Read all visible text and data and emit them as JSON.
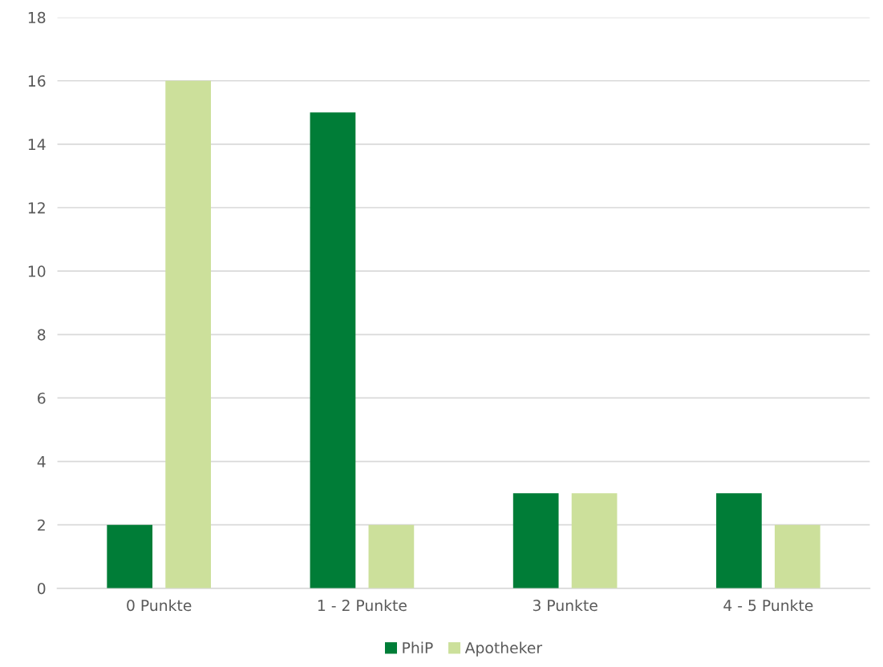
{
  "chart_data": {
    "type": "bar",
    "categories": [
      "0 Punkte",
      "1 - 2 Punkte",
      "3 Punkte",
      "4 - 5 Punkte"
    ],
    "series": [
      {
        "name": "PhiP",
        "color": "#007d37",
        "values": [
          2,
          15,
          3,
          3
        ]
      },
      {
        "name": "Apotheker",
        "color": "#cce09b",
        "values": [
          16,
          2,
          3,
          2
        ]
      }
    ],
    "ylim": [
      0,
      18
    ],
    "yticks": [
      0,
      2,
      4,
      6,
      8,
      10,
      12,
      14,
      16,
      18
    ],
    "grid": "y",
    "legend": "bottom"
  }
}
